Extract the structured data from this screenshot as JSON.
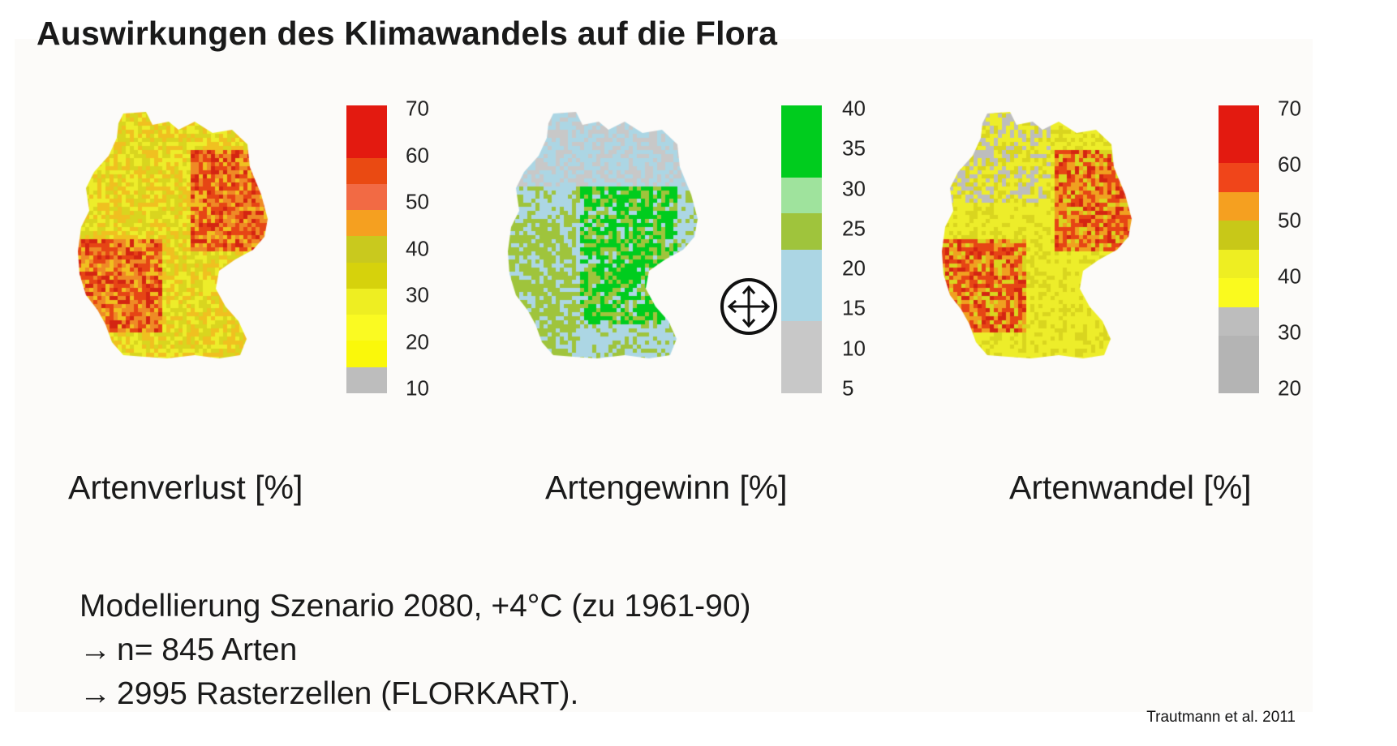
{
  "title": "Auswirkungen des Klimawandels auf die Flora",
  "maps": [
    {
      "id": "verlust",
      "caption": "Artenverlust [%]",
      "legend_ticks": [
        "70",
        "60",
        "50",
        "40",
        "30",
        "20",
        "10"
      ],
      "legend_colors": [
        "#e31a10",
        "#e31a10",
        "#ea4a12",
        "#f26a44",
        "#f5a020",
        "#c9c91e",
        "#d6d20c",
        "#eeee22",
        "#fafa22",
        "#faf80a",
        "#bdbdbd"
      ],
      "palette": [
        "#eded2a",
        "#d9d51f",
        "#f0c020",
        "#ef8a25",
        "#e64515",
        "#d42512"
      ]
    },
    {
      "id": "gewinn",
      "caption": "Artengewinn [%]",
      "legend_ticks": [
        "40",
        "35",
        "30",
        "25",
        "20",
        "15",
        "10",
        "5"
      ],
      "legend_colors": [
        "#00cc1e",
        "#00cc1e",
        "#9fe39d",
        "#9fc43c",
        "#acd6e4",
        "#acd6e4",
        "#c8c8c8",
        "#c8c8c8"
      ],
      "palette": [
        "#c8c8c8",
        "#acd6e4",
        "#9fc43c",
        "#00cc1e"
      ]
    },
    {
      "id": "wandel",
      "caption": "Artenwandel [%]",
      "legend_ticks": [
        "70",
        "60",
        "50",
        "40",
        "30",
        "20"
      ],
      "legend_colors": [
        "#e31a10",
        "#e31a10",
        "#f0451a",
        "#f5a020",
        "#c8c818",
        "#eeee22",
        "#fafa1e",
        "#bdbdbd",
        "#b4b4b4",
        "#b4b4b4"
      ],
      "palette": [
        "#bdbdbd",
        "#eded2a",
        "#d9d51f",
        "#f0a020",
        "#e64515",
        "#d42512"
      ]
    }
  ],
  "notes": {
    "line1": "Modellierung Szenario 2080, +4°C (zu 1961-90)",
    "arrow": "→",
    "line2": "n= 845 Arten",
    "line3": "2995 Rasterzellen (FLORKART)."
  },
  "citation": "Trautmann et al. 2011",
  "cursor_icon": "move-cursor-icon"
}
